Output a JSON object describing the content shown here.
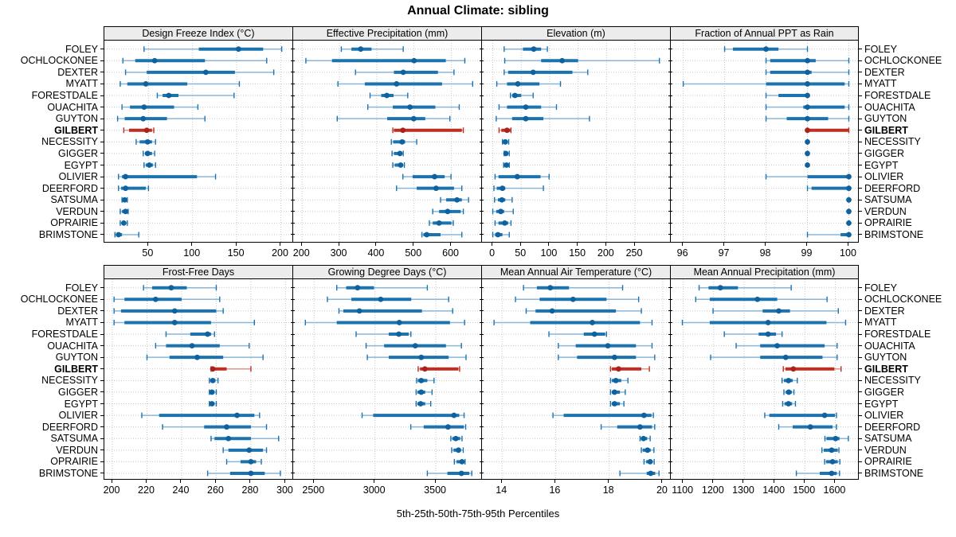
{
  "chart_data": {
    "type": "percentile-dotplot",
    "title": "Annual Climate: sibling",
    "footer": "5th-25th-50th-75th-95th Percentiles",
    "percentiles": [
      5,
      25,
      50,
      75,
      95
    ],
    "highlight": "GILBERT",
    "legend_position": "none",
    "grid": "dotted",
    "colors": {
      "blue": "#1c73ae",
      "blue_light": "#8ab6d8",
      "blue_dot": "#10629e",
      "red": "#bd2f22",
      "red_light": "#e2948b",
      "red_dot": "#a8241a",
      "header_bg": "#ececec",
      "grid": "#c8c8c8",
      "border": "#000000",
      "text": "#000000"
    },
    "categories": [
      "FOLEY",
      "OCHLOCKONEE",
      "DEXTER",
      "MYATT",
      "FORESTDALE",
      "OUACHITA",
      "GUYTON",
      "GILBERT",
      "NECESSITY",
      "GIGGER",
      "EGYPT",
      "OLIVIER",
      "DEERFORD",
      "SATSUMA",
      "VERDUN",
      "OPRAIRIE",
      "BRIMSTONE"
    ],
    "panels": [
      {
        "title": "Design Freeze Index (°C)",
        "row": 0,
        "col": 0,
        "ticks": [
          50,
          100,
          150,
          200
        ],
        "range": [
          0,
          214
        ],
        "values": [
          [
            45,
            107,
            152,
            180,
            201
          ],
          [
            21,
            35,
            57,
            114,
            184
          ],
          [
            24,
            48,
            115,
            148,
            192
          ],
          [
            18,
            26,
            47,
            94,
            153
          ],
          [
            60,
            66,
            73,
            84,
            147
          ],
          [
            20,
            29,
            45,
            79,
            106
          ],
          [
            15,
            23,
            44,
            71,
            114
          ],
          [
            22,
            28,
            48,
            54,
            56
          ],
          [
            36,
            40,
            49,
            54,
            58
          ],
          [
            44,
            46,
            49,
            54,
            57
          ],
          [
            45,
            47,
            51,
            55,
            58
          ],
          [
            16,
            20,
            24,
            105,
            126
          ],
          [
            16,
            19,
            24,
            47,
            50
          ],
          [
            20,
            21,
            23,
            25,
            26
          ],
          [
            18,
            20,
            24,
            26,
            27
          ],
          [
            18,
            20,
            22,
            24,
            26
          ],
          [
            12,
            14,
            16,
            20,
            39
          ]
        ]
      },
      {
        "title": "Effective Precipitation (mm)",
        "row": 0,
        "col": 1,
        "ticks": [
          200,
          300,
          400,
          500,
          600
        ],
        "range": [
          176,
          682
        ],
        "values": [
          [
            305,
            332,
            357,
            386,
            471
          ],
          [
            210,
            280,
            500,
            585,
            636
          ],
          [
            343,
            446,
            471,
            564,
            607
          ],
          [
            296,
            368,
            453,
            575,
            657
          ],
          [
            382,
            412,
            427,
            445,
            483
          ],
          [
            376,
            443,
            489,
            557,
            621
          ],
          [
            294,
            428,
            499,
            530,
            596
          ],
          [
            443,
            446,
            470,
            628,
            632
          ],
          [
            439,
            444,
            468,
            476,
            507
          ],
          [
            441,
            446,
            462,
            468,
            471
          ],
          [
            443,
            448,
            464,
            470,
            474
          ],
          [
            470,
            496,
            555,
            582,
            599
          ],
          [
            453,
            507,
            559,
            607,
            628
          ],
          [
            571,
            586,
            615,
            628,
            646
          ],
          [
            550,
            567,
            590,
            625,
            632
          ],
          [
            541,
            550,
            567,
            600,
            605
          ],
          [
            521,
            525,
            534,
            571,
            628
          ]
        ]
      },
      {
        "title": "Elevation (m)",
        "row": 0,
        "col": 2,
        "ticks": [
          0,
          50,
          100,
          150,
          200,
          250
        ],
        "range": [
          -19,
          313
        ],
        "values": [
          [
            20,
            53,
            72,
            85,
            96
          ],
          [
            21,
            85,
            122,
            150,
            293
          ],
          [
            20,
            27,
            71,
            140,
            167
          ],
          [
            7,
            25,
            44,
            82,
            119
          ],
          [
            31,
            34,
            39,
            50,
            71
          ],
          [
            11,
            25,
            58,
            85,
            112
          ],
          [
            6,
            34,
            58,
            89,
            170
          ],
          [
            11,
            15,
            25,
            31,
            32
          ],
          [
            17,
            19,
            22,
            26,
            28
          ],
          [
            20,
            21,
            23,
            27,
            29
          ],
          [
            19,
            21,
            24,
            27,
            29
          ],
          [
            4,
            10,
            43,
            84,
            99
          ],
          [
            2,
            7,
            17,
            22,
            89
          ],
          [
            3,
            9,
            16,
            22,
            34
          ],
          [
            0,
            6,
            14,
            20,
            36
          ],
          [
            4,
            10,
            21,
            27,
            32
          ],
          [
            0,
            4,
            9,
            17,
            29
          ]
        ]
      },
      {
        "title": "Fraction of Annual PPT as Rain",
        "row": 0,
        "col": 3,
        "ticks": [
          96,
          97,
          98,
          99,
          100
        ],
        "range": [
          95.7,
          100.26
        ],
        "values": [
          [
            97,
            97.2,
            98,
            98.3,
            99
          ],
          [
            98,
            98.1,
            99,
            99.2,
            100
          ],
          [
            98,
            98.1,
            99,
            99.1,
            100
          ],
          [
            96,
            98,
            99,
            99.9,
            100
          ],
          [
            98,
            98.3,
            99,
            99,
            99
          ],
          [
            98,
            98.9,
            99,
            99.9,
            100
          ],
          [
            98,
            98.5,
            99,
            99.5,
            100
          ],
          [
            99,
            99,
            99,
            100,
            100
          ],
          [
            99,
            99,
            99,
            99,
            99
          ],
          [
            99,
            99,
            99,
            99,
            99
          ],
          [
            99,
            99,
            99,
            99,
            99
          ],
          [
            98,
            99,
            100,
            100,
            100
          ],
          [
            99,
            99.1,
            100,
            100,
            100
          ],
          [
            100,
            100,
            100,
            100,
            100
          ],
          [
            100,
            100,
            100,
            100,
            100
          ],
          [
            100,
            100,
            100,
            100,
            100
          ],
          [
            99,
            99.8,
            100,
            100,
            100
          ]
        ]
      },
      {
        "title": "Frost-Free Days",
        "row": 1,
        "col": 0,
        "ticks": [
          200,
          220,
          240,
          260,
          280,
          300
        ],
        "range": [
          195.4,
          304.4
        ],
        "values": [
          [
            218,
            223,
            234,
            243,
            260
          ],
          [
            201,
            207,
            225,
            240,
            262
          ],
          [
            201,
            205,
            236,
            260,
            264
          ],
          [
            201,
            207,
            236,
            257,
            282
          ],
          [
            231,
            245,
            255,
            257,
            259
          ],
          [
            225,
            231,
            246,
            262,
            279
          ],
          [
            220,
            233,
            249,
            264,
            287
          ],
          [
            257,
            257.5,
            258,
            266,
            280
          ],
          [
            256,
            256.5,
            258,
            259.5,
            261
          ],
          [
            256,
            256.5,
            257.5,
            259,
            260
          ],
          [
            256,
            256.5,
            257.5,
            259,
            260
          ],
          [
            217,
            227,
            272,
            282,
            285
          ],
          [
            229,
            253,
            266,
            280,
            289
          ],
          [
            257,
            259,
            267,
            280,
            296
          ],
          [
            264,
            267,
            279,
            287,
            289
          ],
          [
            266,
            274,
            280,
            283,
            286
          ],
          [
            255,
            268,
            280,
            288,
            297
          ]
        ]
      },
      {
        "title": "Growing Degree Days (°C)",
        "row": 1,
        "col": 1,
        "ticks": [
          2500,
          3000,
          3500
        ],
        "range": [
          2328,
          3879
        ],
        "values": [
          [
            2686,
            2763,
            2857,
            2992,
            3430
          ],
          [
            2609,
            2806,
            3047,
            3298,
            3605
          ],
          [
            2704,
            2740,
            2872,
            3386,
            3638
          ],
          [
            2428,
            2686,
            3200,
            3616,
            3736
          ],
          [
            2845,
            3113,
            3196,
            3277,
            3295
          ],
          [
            2927,
            3075,
            3331,
            3583,
            3710
          ],
          [
            2937,
            3113,
            3380,
            3605,
            3748
          ],
          [
            3355,
            3370,
            3410,
            3685,
            3695
          ],
          [
            3342,
            3352,
            3380,
            3430,
            3485
          ],
          [
            3338,
            3349,
            3380,
            3413,
            3469
          ],
          [
            3338,
            3349,
            3375,
            3413,
            3458
          ],
          [
            2894,
            2985,
            3649,
            3692,
            3732
          ],
          [
            3294,
            3400,
            3600,
            3730,
            3745
          ],
          [
            3623,
            3635,
            3664,
            3700,
            3715
          ],
          [
            3630,
            3645,
            3686,
            3705,
            3725
          ],
          [
            3652,
            3670,
            3715,
            3722,
            3740
          ],
          [
            3430,
            3595,
            3710,
            3775,
            3795
          ]
        ]
      },
      {
        "title": "Mean Annual Air Temperature (°C)",
        "row": 1,
        "col": 2,
        "ticks": [
          14,
          16,
          18,
          20
        ],
        "range": [
          13.25,
          20.3
        ],
        "values": [
          [
            14.8,
            15.3,
            15.8,
            16.5,
            18.5
          ],
          [
            14.5,
            15.4,
            16.65,
            17.9,
            19.1
          ],
          [
            14.9,
            15.25,
            15.87,
            18.25,
            19.2
          ],
          [
            13.7,
            15.05,
            17.37,
            19.15,
            19.6
          ],
          [
            15.75,
            17.05,
            17.45,
            17.85,
            17.9
          ],
          [
            16.1,
            16.75,
            17.95,
            19.0,
            19.6
          ],
          [
            16.1,
            16.8,
            18.2,
            19.0,
            19.7
          ],
          [
            18.05,
            18.1,
            18.35,
            19.2,
            19.5
          ],
          [
            18.05,
            18.1,
            18.25,
            18.45,
            18.7
          ],
          [
            18.05,
            18.1,
            18.2,
            18.4,
            18.6
          ],
          [
            18.05,
            18.1,
            18.2,
            18.4,
            18.55
          ],
          [
            15.9,
            16.3,
            19.3,
            19.58,
            19.65
          ],
          [
            17.7,
            18.3,
            19.15,
            19.6,
            19.7
          ],
          [
            19.15,
            19.18,
            19.28,
            19.42,
            19.53
          ],
          [
            19.2,
            19.25,
            19.43,
            19.55,
            19.67
          ],
          [
            19.3,
            19.38,
            19.53,
            19.6,
            19.68
          ],
          [
            18.4,
            19.4,
            19.55,
            19.72,
            19.86
          ]
        ]
      },
      {
        "title": "Mean Annual Precipitation (mm)",
        "row": 1,
        "col": 3,
        "ticks": [
          1100,
          1200,
          1300,
          1400,
          1500,
          1600
        ],
        "range": [
          1059,
          1680
        ],
        "values": [
          [
            1152,
            1183,
            1222,
            1280,
            1455
          ],
          [
            1141,
            1187,
            1344,
            1409,
            1573
          ],
          [
            1198,
            1361,
            1414,
            1451,
            1610
          ],
          [
            1097,
            1187,
            1379,
            1571,
            1634
          ],
          [
            1235,
            1348,
            1379,
            1405,
            1425
          ],
          [
            1274,
            1353,
            1409,
            1565,
            1606
          ],
          [
            1190,
            1353,
            1437,
            1558,
            1606
          ],
          [
            1429,
            1436,
            1462,
            1597,
            1619
          ],
          [
            1425,
            1431,
            1446,
            1460,
            1475
          ],
          [
            1431,
            1437,
            1447,
            1457,
            1464
          ],
          [
            1427,
            1433,
            1446,
            1458,
            1469
          ],
          [
            1368,
            1383,
            1565,
            1599,
            1604
          ],
          [
            1414,
            1460,
            1518,
            1591,
            1604
          ],
          [
            1566,
            1571,
            1601,
            1614,
            1643
          ],
          [
            1556,
            1562,
            1588,
            1608,
            1612
          ],
          [
            1565,
            1570,
            1591,
            1608,
            1615
          ],
          [
            1472,
            1549,
            1588,
            1605,
            1614
          ]
        ]
      }
    ]
  }
}
